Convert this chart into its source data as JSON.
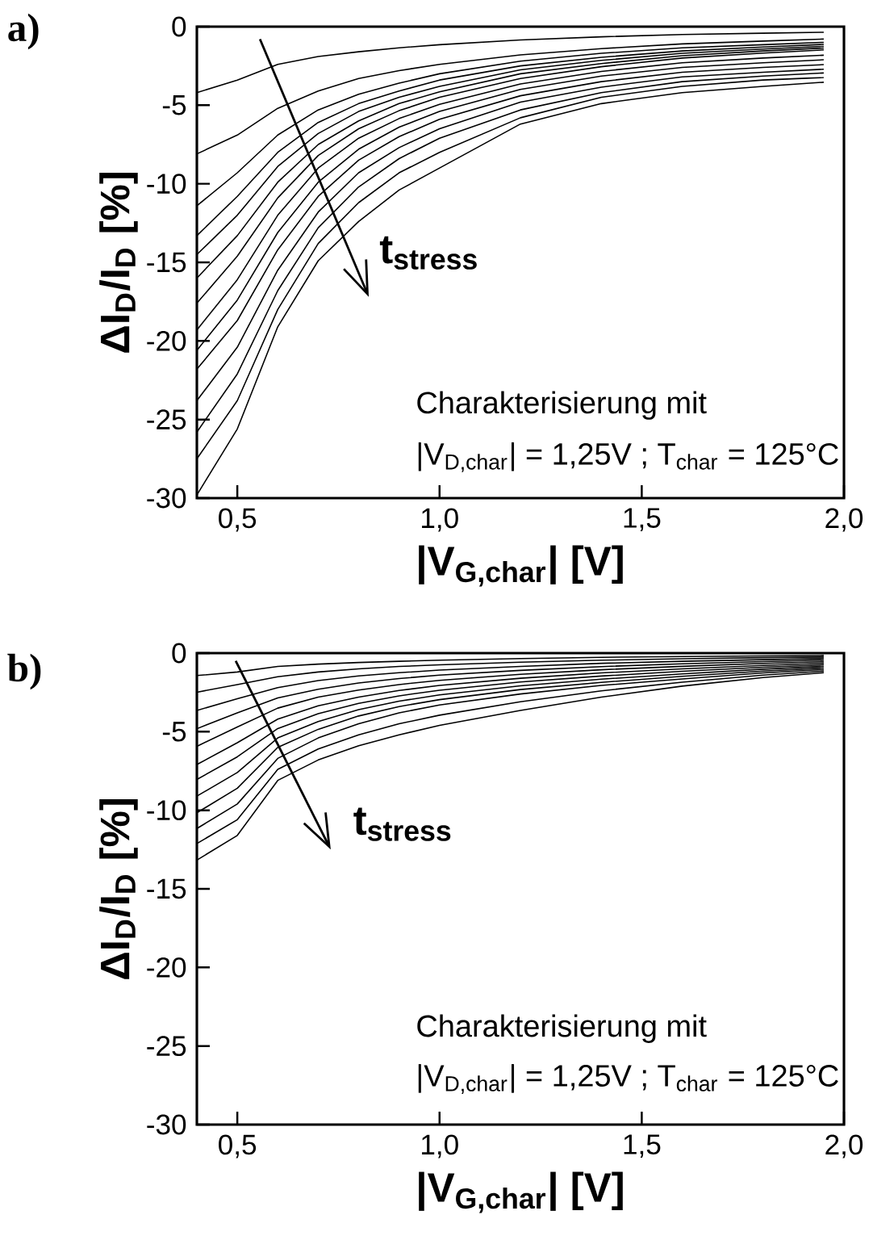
{
  "chart_data": [
    {
      "type": "line",
      "title": "a)",
      "xlabel": "|V$_{G,char}$| [V]",
      "ylabel": "ΔI$_{D}$/I$_{D}$ [%]",
      "annotations": [
        "t$_{stress}$",
        "Charakterisierung mit",
        "|V$_{D,char}$| = 1,25V ; T$_{char}$ = 125°C"
      ],
      "xlim": [
        0.4,
        2.0
      ],
      "ylim": [
        -30,
        0
      ],
      "xticks": [
        {
          "value": 0.5,
          "label": "0,5"
        },
        {
          "value": 1.0,
          "label": "1,0"
        },
        {
          "value": 1.5,
          "label": "1,5"
        },
        {
          "value": 2.0,
          "label": "2,0"
        }
      ],
      "yticks": [
        0,
        -5,
        -10,
        -15,
        -20,
        -25,
        -30
      ],
      "x": [
        0.4,
        0.5,
        0.6,
        0.7,
        0.8,
        0.9,
        1.0,
        1.2,
        1.4,
        1.6,
        1.8,
        1.95
      ],
      "series": [
        {
          "color": "#000000",
          "values": [
            -4.2,
            -3.4,
            -2.4,
            -1.9,
            -1.6,
            -1.35,
            -1.15,
            -0.85,
            -0.65,
            -0.5,
            -0.42,
            -0.36
          ]
        },
        {
          "color": "#000000",
          "values": [
            -8.1,
            -6.9,
            -5.2,
            -4.1,
            -3.3,
            -2.8,
            -2.4,
            -1.8,
            -1.4,
            -1.1,
            -0.92,
            -0.79
          ]
        },
        {
          "color": "#000000",
          "values": [
            -11.4,
            -9.3,
            -6.9,
            -5.3,
            -4.3,
            -3.6,
            -3.0,
            -2.2,
            -1.7,
            -1.35,
            -1.15,
            -1.0
          ]
        },
        {
          "color": "#000000",
          "values": [
            -13.3,
            -10.8,
            -8.0,
            -6.1,
            -4.9,
            -4.1,
            -3.4,
            -2.5,
            -1.95,
            -1.55,
            -1.3,
            -1.13
          ]
        },
        {
          "color": "#000000",
          "values": [
            -14.5,
            -12.0,
            -8.9,
            -6.8,
            -5.4,
            -4.5,
            -3.8,
            -2.75,
            -2.15,
            -1.7,
            -1.43,
            -1.25
          ]
        },
        {
          "color": "#000000",
          "values": [
            -16.0,
            -13.3,
            -9.9,
            -7.5,
            -6.0,
            -4.9,
            -4.15,
            -3.0,
            -2.35,
            -1.85,
            -1.55,
            -1.36
          ]
        },
        {
          "color": "#000000",
          "values": [
            -17.6,
            -14.6,
            -10.9,
            -8.2,
            -6.5,
            -5.35,
            -4.5,
            -3.3,
            -2.55,
            -2.0,
            -1.68,
            -1.48
          ]
        },
        {
          "color": "#000000",
          "values": [
            -19.3,
            -16.1,
            -12.0,
            -9.0,
            -7.1,
            -5.85,
            -4.95,
            -3.65,
            -2.85,
            -2.3,
            -2.0,
            -1.82
          ]
        },
        {
          "color": "#000000",
          "values": [
            -20.6,
            -17.4,
            -13.1,
            -9.9,
            -7.8,
            -6.4,
            -5.4,
            -4.0,
            -3.15,
            -2.6,
            -2.3,
            -2.11
          ]
        },
        {
          "color": "#000000",
          "values": [
            -21.8,
            -18.7,
            -14.2,
            -10.8,
            -8.5,
            -7.0,
            -5.9,
            -4.4,
            -3.5,
            -2.9,
            -2.6,
            -2.42
          ]
        },
        {
          "color": "#000000",
          "values": [
            -23.8,
            -20.4,
            -15.5,
            -11.8,
            -9.3,
            -7.7,
            -6.5,
            -4.8,
            -3.85,
            -3.2,
            -2.9,
            -2.71
          ]
        },
        {
          "color": "#000000",
          "values": [
            -25.8,
            -22.1,
            -16.8,
            -12.8,
            -10.2,
            -8.4,
            -7.1,
            -5.3,
            -4.2,
            -3.5,
            -3.15,
            -2.95
          ]
        },
        {
          "color": "#000000",
          "values": [
            -27.5,
            -23.8,
            -18.0,
            -13.8,
            -11.2,
            -9.3,
            -8.0,
            -5.8,
            -4.5,
            -3.8,
            -3.4,
            -3.24
          ]
        },
        {
          "color": "#000000",
          "values": [
            -29.8,
            -25.6,
            -19.1,
            -14.9,
            -12.4,
            -10.4,
            -9.0,
            -6.2,
            -4.9,
            -4.2,
            -3.8,
            -3.54
          ]
        }
      ]
    },
    {
      "type": "line",
      "title": "b)",
      "xlabel": "|V$_{G,char}$| [V]",
      "ylabel": "ΔI$_{D}$/I$_{D}$ [%]",
      "annotations": [
        "t$_{stress}$",
        "Charakterisierung mit",
        "|V$_{D,char}$| = 1,25V ; T$_{char}$ = 125°C"
      ],
      "xlim": [
        0.4,
        2.0
      ],
      "ylim": [
        -30,
        0
      ],
      "xticks": [
        {
          "value": 0.5,
          "label": "0,5"
        },
        {
          "value": 1.0,
          "label": "1,0"
        },
        {
          "value": 1.5,
          "label": "1,5"
        },
        {
          "value": 2.0,
          "label": "2,0"
        }
      ],
      "yticks": [
        0,
        -5,
        -10,
        -15,
        -20,
        -25,
        -30
      ],
      "x": [
        0.4,
        0.5,
        0.6,
        0.7,
        0.8,
        0.9,
        1.0,
        1.2,
        1.4,
        1.6,
        1.8,
        1.95
      ],
      "series": [
        {
          "color": "#000000",
          "values": [
            -1.43,
            -1.2,
            -0.85,
            -0.7,
            -0.6,
            -0.52,
            -0.45,
            -0.35,
            -0.27,
            -0.22,
            -0.18,
            -0.15
          ]
        },
        {
          "color": "#000000",
          "values": [
            -2.49,
            -2.0,
            -1.5,
            -1.2,
            -1.0,
            -0.85,
            -0.75,
            -0.58,
            -0.45,
            -0.36,
            -0.29,
            -0.25
          ]
        },
        {
          "color": "#000000",
          "values": [
            -3.65,
            -2.9,
            -2.2,
            -1.75,
            -1.45,
            -1.25,
            -1.08,
            -0.85,
            -0.65,
            -0.52,
            -0.42,
            -0.35
          ]
        },
        {
          "color": "#000000",
          "values": [
            -4.81,
            -3.8,
            -2.85,
            -2.3,
            -1.9,
            -1.62,
            -1.4,
            -1.1,
            -0.86,
            -0.68,
            -0.54,
            -0.45
          ]
        },
        {
          "color": "#000000",
          "values": [
            -5.93,
            -4.7,
            -3.5,
            -2.8,
            -2.35,
            -2.0,
            -1.73,
            -1.35,
            -1.06,
            -0.84,
            -0.66,
            -0.55
          ]
        },
        {
          "color": "#000000",
          "values": [
            -7.09,
            -5.7,
            -4.2,
            -3.35,
            -2.8,
            -2.38,
            -2.06,
            -1.6,
            -1.26,
            -1.0,
            -0.78,
            -0.65
          ]
        },
        {
          "color": "#000000",
          "values": [
            -8.04,
            -6.6,
            -4.8,
            -3.85,
            -3.2,
            -2.72,
            -2.36,
            -1.84,
            -1.46,
            -1.16,
            -0.9,
            -0.75
          ]
        },
        {
          "color": "#000000",
          "values": [
            -9.1,
            -7.6,
            -5.4,
            -4.35,
            -3.6,
            -3.06,
            -2.66,
            -2.08,
            -1.66,
            -1.32,
            -1.02,
            -0.85
          ]
        },
        {
          "color": "#000000",
          "values": [
            -10.16,
            -8.6,
            -6.0,
            -4.85,
            -4.0,
            -3.4,
            -2.96,
            -2.32,
            -1.86,
            -1.48,
            -1.14,
            -0.95
          ]
        },
        {
          "color": "#000000",
          "values": [
            -11.16,
            -9.6,
            -6.7,
            -5.4,
            -4.5,
            -3.8,
            -3.3,
            -2.6,
            -2.06,
            -1.64,
            -1.26,
            -1.05
          ]
        },
        {
          "color": "#000000",
          "values": [
            -12.12,
            -10.6,
            -7.4,
            -6.1,
            -5.2,
            -4.5,
            -3.95,
            -3.1,
            -2.4,
            -1.85,
            -1.4,
            -1.15
          ]
        },
        {
          "color": "#000000",
          "values": [
            -13.17,
            -11.6,
            -8.1,
            -6.8,
            -5.9,
            -5.2,
            -4.6,
            -3.65,
            -2.8,
            -2.1,
            -1.55,
            -1.25
          ]
        }
      ]
    }
  ]
}
